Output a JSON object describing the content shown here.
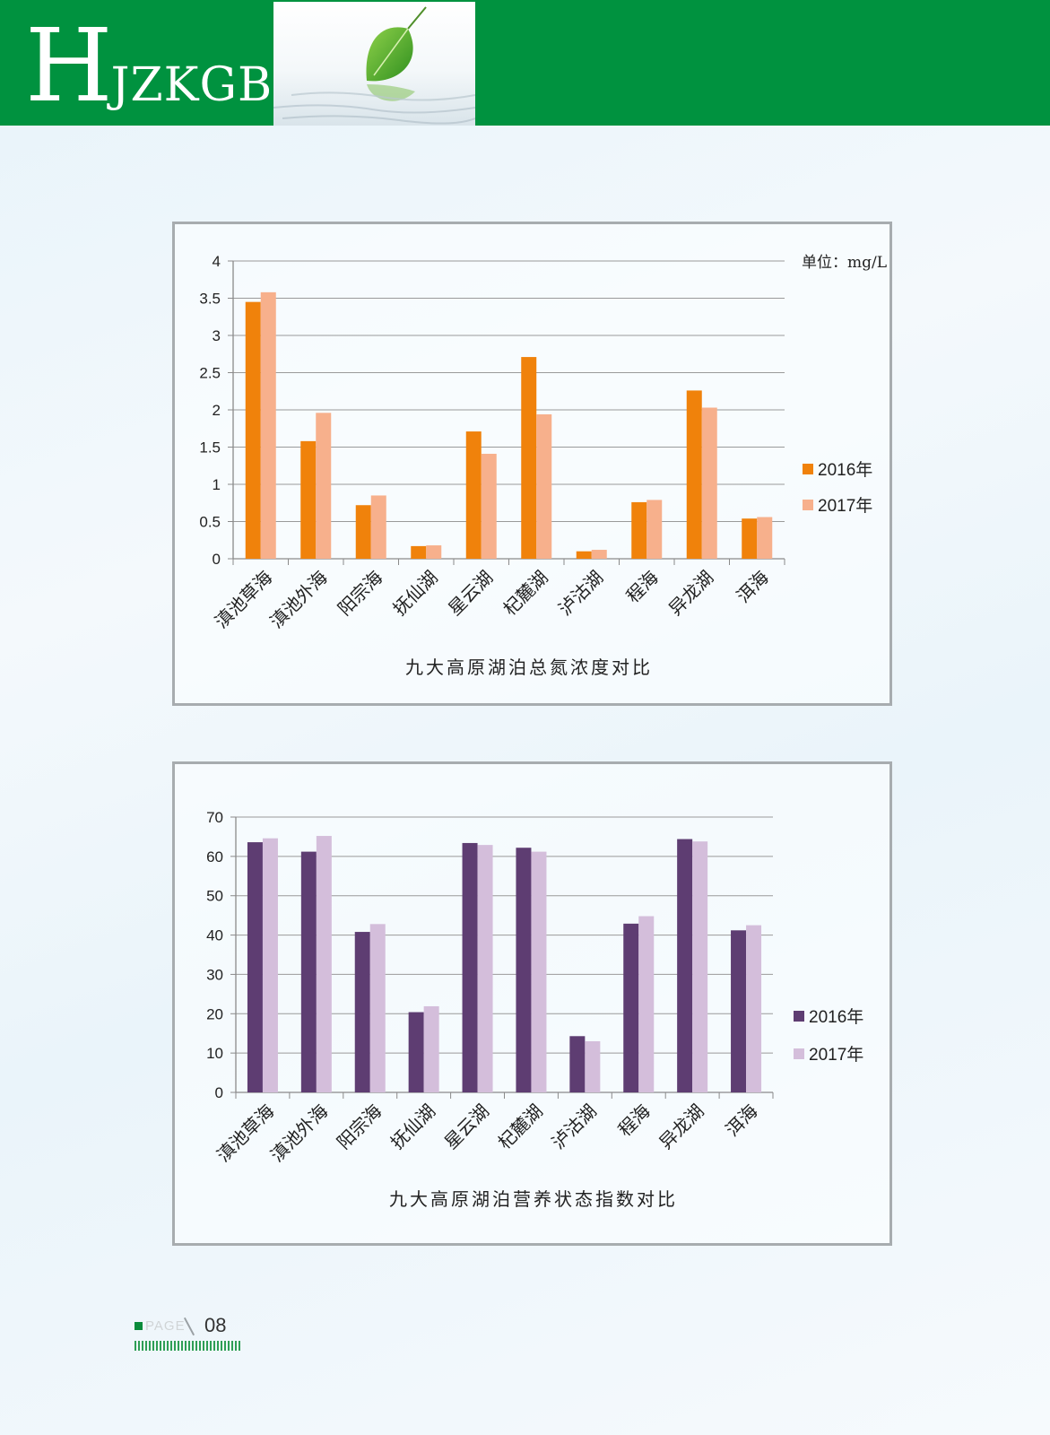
{
  "header": {
    "logo_h": "H",
    "logo_rest": "JZKGB",
    "leaf_icon": "leaf-reflection-icon",
    "brand_color": "#00923f"
  },
  "footer": {
    "page_label": "PAGE",
    "page_number": "08"
  },
  "chart_data": [
    {
      "type": "bar",
      "title": "九大高原湖泊总氮浓度对比",
      "unit_label": "单位：mg/L",
      "categories": [
        "滇池草海",
        "滇池外海",
        "阳宗海",
        "抚仙湖",
        "星云湖",
        "杞麓湖",
        "泸沽湖",
        "程海",
        "异龙湖",
        "洱海"
      ],
      "series": [
        {
          "name": "2016年",
          "color": "#f0820b",
          "values": [
            3.45,
            1.58,
            0.72,
            0.17,
            1.71,
            2.71,
            0.1,
            0.76,
            2.26,
            0.54
          ]
        },
        {
          "name": "2017年",
          "color": "#f7b08c",
          "values": [
            3.58,
            1.96,
            0.85,
            0.18,
            1.41,
            1.94,
            0.12,
            0.79,
            2.03,
            0.56
          ]
        }
      ],
      "ylim": [
        0,
        4
      ],
      "yticks": [
        "0",
        "0.5",
        "1",
        "1.5",
        "2",
        "2.5",
        "3",
        "3.5",
        "4"
      ],
      "grid": true,
      "legend": "right"
    },
    {
      "type": "bar",
      "title": "九大高原湖泊营养状态指数对比",
      "categories": [
        "滇池草海",
        "滇池外海",
        "阳宗海",
        "抚仙湖",
        "星云湖",
        "杞麓湖",
        "泸沽湖",
        "程海",
        "异龙湖",
        "洱海"
      ],
      "series": [
        {
          "name": "2016年",
          "color": "#5e3d72",
          "values": [
            63.6,
            61.2,
            40.8,
            20.4,
            63.4,
            62.2,
            14.3,
            42.9,
            64.4,
            41.2
          ]
        },
        {
          "name": "2017年",
          "color": "#d4bedb",
          "values": [
            64.6,
            65.2,
            42.8,
            21.9,
            62.9,
            61.2,
            13.0,
            44.8,
            63.8,
            42.5
          ]
        }
      ],
      "ylim": [
        0,
        70
      ],
      "yticks": [
        "0",
        "10",
        "20",
        "30",
        "40",
        "50",
        "60",
        "70"
      ],
      "grid": true,
      "legend": "right"
    }
  ]
}
